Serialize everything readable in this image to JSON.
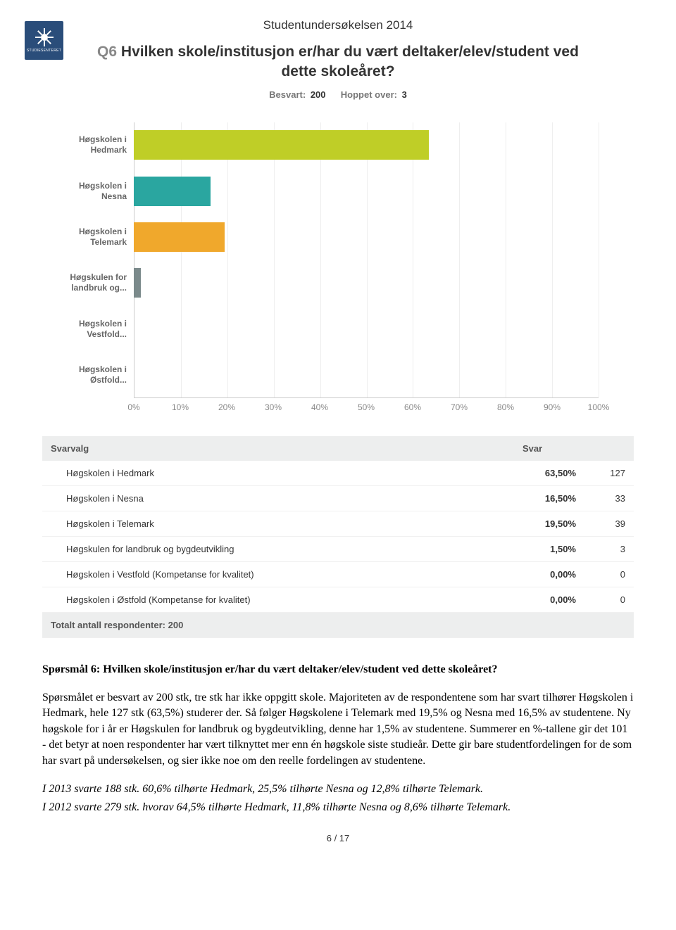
{
  "header": {
    "survey_title": "Studentundersøkelsen 2014",
    "q_prefix": "Q6",
    "question": "Hvilken skole/institusjon er/har du vært deltaker/elev/student ved dette skoleåret?",
    "answered_label": "Besvart:",
    "answered_value": "200",
    "skipped_label": "Hoppet over:",
    "skipped_value": "3"
  },
  "chart": {
    "xticks": [
      "0%",
      "10%",
      "20%",
      "30%",
      "40%",
      "50%",
      "60%",
      "70%",
      "80%",
      "90%",
      "100%"
    ],
    "bars": [
      {
        "label": "Høgskolen i\nHedmark",
        "value": 63.5,
        "color": "#bfce27"
      },
      {
        "label": "Høgskolen i\nNesna",
        "value": 16.5,
        "color": "#2aa6a0"
      },
      {
        "label": "Høgskolen i\nTelemark",
        "value": 19.5,
        "color": "#f0a82c"
      },
      {
        "label": "Høgskulen for\nlandbruk og...",
        "value": 1.5,
        "color": "#7b8a8b"
      },
      {
        "label": "Høgskolen i\nVestfold...",
        "value": 0.0,
        "color": "#cccccc"
      },
      {
        "label": "Høgskolen i\nØstfold...",
        "value": 0.0,
        "color": "#cccccc"
      }
    ]
  },
  "table": {
    "header_choice": "Svarvalg",
    "header_resp": "Svar",
    "rows": [
      {
        "label": "Høgskolen i Hedmark",
        "pct": "63,50%",
        "count": "127"
      },
      {
        "label": "Høgskolen i Nesna",
        "pct": "16,50%",
        "count": "33"
      },
      {
        "label": "Høgskolen i Telemark",
        "pct": "19,50%",
        "count": "39"
      },
      {
        "label": "Høgskulen for landbruk og bygdeutvikling",
        "pct": "1,50%",
        "count": "3"
      },
      {
        "label": "Høgskolen i Vestfold (Kompetanse for kvalitet)",
        "pct": "0,00%",
        "count": "0"
      },
      {
        "label": "Høgskolen i Østfold (Kompetanse for kvalitet)",
        "pct": "0,00%",
        "count": "0"
      }
    ],
    "totals_label": "Totalt antall respondenter: 200"
  },
  "body": {
    "heading": "Spørsmål 6: Hvilken skole/institusjon er/har du vært deltaker/elev/student ved dette skoleåret?",
    "para": "Spørsmålet er besvart av 200 stk, tre stk har ikke oppgitt skole. Majoriteten av de respondentene som har svart tilhører Høgskolen i Hedmark, hele 127 stk (63,5%) studerer der. Så følger Høgskolene i Telemark med 19,5% og Nesna med 16,5% av studentene. Ny høgskole for i år er Høgskulen for landbruk og bygdeutvikling, denne har 1,5% av studentene. Summerer en %-tallene gir det 101 - det betyr at noen respondenter har vært tilknyttet mer enn én høgskole siste studieår. Dette gir bare studentfordelingen for de som har svart på undersøkelsen, og sier ikke noe om den reelle fordelingen av studentene.",
    "italic1": "I 2013 svarte 188 stk. 60,6% tilhørte Hedmark, 25,5% tilhørte Nesna og 12,8% tilhørte Telemark.",
    "italic2": "I 2012 svarte 279 stk. hvorav 64,5% tilhørte Hedmark, 11,8% tilhørte Nesna og 8,6% tilhørte Telemark."
  },
  "footer": {
    "page": "6 / 17"
  }
}
